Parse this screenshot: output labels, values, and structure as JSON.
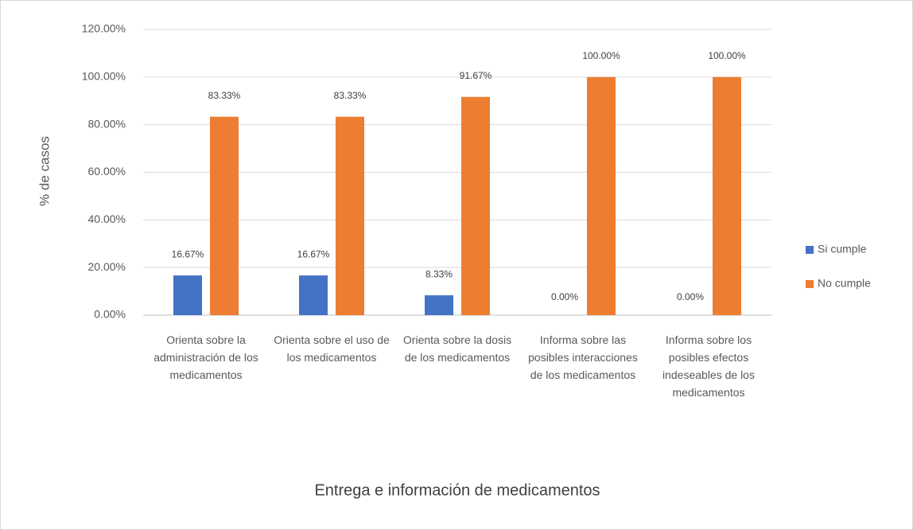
{
  "chart_data": {
    "type": "bar",
    "x_label": "Entrega e información de medicamentos",
    "y_label": "% de casos",
    "categories": [
      "Orienta sobre la administración de los medicamentos",
      "Orienta sobre el uso de los medicamentos",
      "Orienta sobre la dosis de los medicamentos",
      "Informa sobre las posibles interacciones de los medicamentos",
      "Informa sobre los posibles efectos indeseables de los medicamentos"
    ],
    "series": [
      {
        "name": "Si cumple",
        "color": "#4472c4",
        "values": [
          16.67,
          16.67,
          8.33,
          0,
          0
        ],
        "value_labels": [
          "16.67%",
          "16.67%",
          "8.33%",
          "0.00%",
          "0.00%"
        ]
      },
      {
        "name": "No cumple",
        "color": "#ed7d31",
        "values": [
          83.33,
          83.33,
          91.67,
          100,
          100
        ],
        "value_labels": [
          "83.33%",
          "83.33%",
          "91.67%",
          "100.00%",
          "100.00%"
        ]
      }
    ],
    "ylim": [
      0,
      120
    ],
    "yticks": [
      {
        "value": 0,
        "label": "0.00%"
      },
      {
        "value": 20,
        "label": "20.00%"
      },
      {
        "value": 40,
        "label": "40.00%"
      },
      {
        "value": 60,
        "label": "60.00%"
      },
      {
        "value": 80,
        "label": "80.00%"
      },
      {
        "value": 100,
        "label": "100.00%"
      },
      {
        "value": 120,
        "label": "120.00%"
      }
    ],
    "grid": true,
    "legend": "right"
  }
}
